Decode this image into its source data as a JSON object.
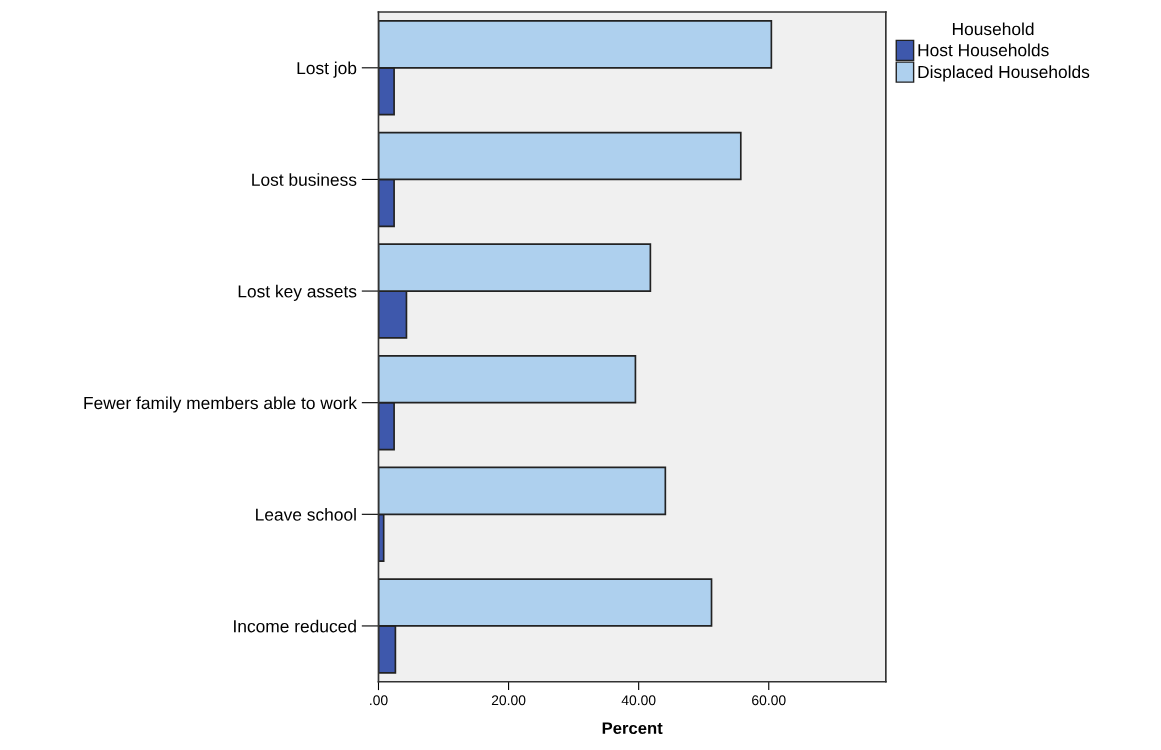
{
  "chart_data": {
    "type": "bar",
    "orientation": "horizontal",
    "xlabel": "Percent",
    "legend_title": "Household",
    "legend": "top right",
    "categories": [
      "Lost job",
      "Lost business",
      "Lost key assets",
      "Fewer family members able to work",
      "Leave school",
      "Income reduced"
    ],
    "series": [
      {
        "name": "Host Households",
        "color": "#3e58ac",
        "values": [
          2.4,
          2.4,
          4.3,
          2.4,
          0.8,
          2.6
        ]
      },
      {
        "name": "Displaced Households",
        "color": "#aed0ee",
        "values": [
          60.4,
          55.7,
          41.8,
          39.5,
          44.1,
          51.2
        ]
      }
    ],
    "xlim": [
      0,
      78
    ],
    "xticks": [
      {
        "value": 0,
        "label": ".00"
      },
      {
        "value": 20,
        "label": "20.00"
      },
      {
        "value": 40,
        "label": "40.00"
      },
      {
        "value": 60,
        "label": "60.00"
      }
    ],
    "grid": false
  }
}
